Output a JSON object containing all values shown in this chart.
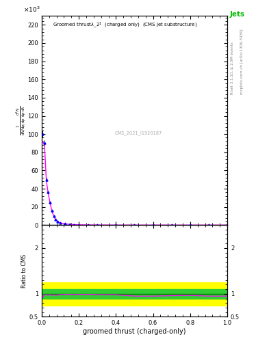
{
  "xlabel": "groomed thrust (charged-only)",
  "ylabel_lines": [
    "mathrm d²N",
    "mathrm d pₜ mathrm d p mathrm d lambda"
  ],
  "ylim_main": [
    0,
    230000
  ],
  "ylim_ratio": [
    0.5,
    2.5
  ],
  "xlim": [
    0.0,
    1.0
  ],
  "annotation": "CMS_2021_I1920187",
  "right_label_top": "Rivet 3.1.10, ≥ 2.9M events",
  "right_label_bottom": "mcplots.cern.ch [arXiv:1306.3436]",
  "jets_label": "Jets",
  "background_color": "#ffffff",
  "data_x": [
    0.005,
    0.015,
    0.025,
    0.035,
    0.045,
    0.055,
    0.065,
    0.075,
    0.085,
    0.1,
    0.125,
    0.15,
    0.175,
    0.2,
    0.25,
    0.3,
    0.4,
    0.5,
    0.6,
    0.7,
    0.8,
    0.9,
    1.0
  ],
  "data_y": [
    100000,
    90000,
    50000,
    36000,
    25000,
    16000,
    10000,
    6000,
    4000,
    2500,
    1400,
    900,
    600,
    400,
    200,
    120,
    50,
    20,
    10,
    5,
    3,
    2,
    1
  ],
  "data_yerr": [
    4000,
    3500,
    2000,
    1400,
    900,
    600,
    350,
    200,
    130,
    80,
    45,
    30,
    20,
    15,
    8,
    5,
    3,
    2,
    1.5,
    1,
    0.8,
    0.6,
    0.3
  ],
  "mc_y": [
    92000,
    88000,
    49000,
    35000,
    24500,
    15500,
    9800,
    5800,
    3900,
    2450,
    1380,
    890,
    590,
    395,
    198,
    118,
    49,
    19,
    9.5,
    4.8,
    2.9,
    1.9,
    0.95
  ],
  "mc_color": "#ff00ff",
  "data_color": "#0000ff",
  "data_marker": "^",
  "ratio_green_lo": 0.9,
  "ratio_green_hi": 1.1,
  "ratio_yellow_lo": 0.75,
  "ratio_yellow_hi": 1.25,
  "yticks_main": [
    0,
    20000,
    40000,
    60000,
    80000,
    100000,
    120000,
    140000,
    160000,
    180000,
    200000,
    220000
  ],
  "ytick_labels_main": [
    "0",
    "20",
    "40",
    "60",
    "80",
    "100",
    "120",
    "140",
    "160",
    "180",
    "200",
    "220"
  ]
}
